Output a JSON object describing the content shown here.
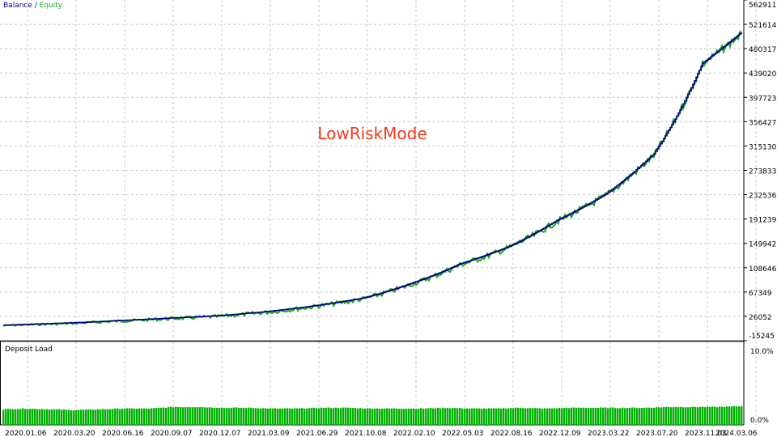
{
  "chart_data": [
    {
      "type": "line",
      "title": "LowRiskMode",
      "legend": {
        "balance": "Balance",
        "separator": " / ",
        "equity": "Equity",
        "placement": "top-left"
      },
      "x_ticks": [
        "2020.01.06",
        "2020.03.20",
        "2020.06.16",
        "2020.09.07",
        "2020.12.07",
        "2021.03.09",
        "2021.06.29",
        "2021.10.08",
        "2022.02.10",
        "2022.05.03",
        "2022.08.16",
        "2022.12.09",
        "2023.03.22",
        "2023.07.20",
        "2023.11.03",
        "2024.03.06"
      ],
      "y_ticks": [
        "562911",
        "521614",
        "480317",
        "439020",
        "397723",
        "356427",
        "315130",
        "273833",
        "232536",
        "191239",
        "149942",
        "108646",
        "67349",
        "26052",
        "-15245"
      ],
      "ylim": [
        -15245,
        562911
      ],
      "grid": true,
      "series": [
        {
          "name": "Balance",
          "color": "#00007f",
          "points": [
            [
              "2020.01.06",
              12200
            ],
            [
              "2020.03.20",
              15000
            ],
            [
              "2020.06.16",
              19000
            ],
            [
              "2020.09.07",
              23000
            ],
            [
              "2020.12.07",
              27000
            ],
            [
              "2021.03.09",
              34000
            ],
            [
              "2021.06.29",
              44000
            ],
            [
              "2021.10.08",
              57000
            ],
            [
              "2022.02.10",
              82000
            ],
            [
              "2022.05.03",
              115000
            ],
            [
              "2022.08.16",
              144000
            ],
            [
              "2022.12.09",
              189000
            ],
            [
              "2023.03.22",
              233000
            ],
            [
              "2023.07.20",
              302000
            ],
            [
              "2023.11.03",
              456000
            ],
            [
              "2024.03.06",
              508000
            ]
          ]
        },
        {
          "name": "Equity",
          "color": "#1fa81f"
        }
      ]
    },
    {
      "type": "bar",
      "title": "Deposit Load",
      "y_ticks": [
        "10.0%",
        "0.0%"
      ],
      "ylim": [
        0,
        10
      ],
      "color": "#00b000",
      "values_pct": [
        2.0,
        2.1,
        2.0,
        1.9,
        2.0,
        2.1,
        2.1,
        2.3,
        2.3,
        2.2,
        2.2,
        2.1,
        2.1,
        2.2,
        2.2,
        2.1,
        2.1,
        2.1,
        2.2,
        2.1,
        2.1,
        2.2,
        2.1,
        2.2,
        2.2,
        2.2,
        2.2,
        2.3,
        2.3,
        2.3,
        2.4
      ]
    }
  ]
}
